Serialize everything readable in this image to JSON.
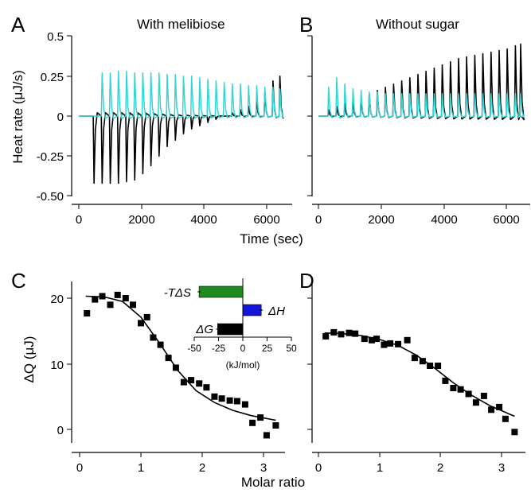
{
  "panels": {
    "A": {
      "letter": "A",
      "title": "With melibiose"
    },
    "B": {
      "letter": "B",
      "title": "Without sugar"
    },
    "C": {
      "letter": "C"
    },
    "D": {
      "letter": "D"
    }
  },
  "axes": {
    "top_ylabel": "Heat rate (μJ/s)",
    "top_xlabel": "Time (sec)",
    "bottom_ylabel": "ΔQ (μJ)",
    "bottom_xlabel": "Molar ratio",
    "top_yticks": [
      "0.5",
      "0.25",
      "0",
      "-0.25",
      "-0.50"
    ],
    "top_xticks": [
      "0",
      "2000",
      "4000",
      "6000"
    ],
    "bottom_yticks": [
      "20",
      "10",
      "0"
    ],
    "bottom_xticks": [
      "0",
      "1",
      "2",
      "3"
    ]
  },
  "inset": {
    "xlabel": "(kJ/mol)",
    "xticks": [
      "-50",
      "-25",
      "0",
      "25",
      "50"
    ],
    "labels": [
      "-TΔS",
      "ΔH",
      "ΔG"
    ]
  },
  "colors": {
    "black": "#000000",
    "cyan": "#33d6d6",
    "green": "#1f8a1f",
    "blue": "#1515d8"
  },
  "chart_data": [
    {
      "panel": "A",
      "type": "line",
      "xlim": [
        0,
        6500
      ],
      "ylim": [
        -0.5,
        0.5
      ],
      "injection_times": [
        460,
        720,
        980,
        1240,
        1500,
        1760,
        2020,
        2280,
        2540,
        2800,
        3060,
        3320,
        3580,
        3840,
        4100,
        4360,
        4620,
        4880,
        5140,
        5400,
        5660,
        5920,
        6180,
        6400
      ],
      "series": [
        {
          "color": "#000000",
          "peak_values": [
            -0.42,
            -0.42,
            -0.42,
            -0.42,
            -0.41,
            -0.4,
            -0.36,
            -0.31,
            -0.25,
            -0.19,
            -0.15,
            -0.11,
            -0.08,
            -0.06,
            -0.04,
            -0.02,
            0.0,
            0.02,
            0.04,
            0.06,
            0.1,
            0.15,
            0.22,
            0.25
          ]
        },
        {
          "color": "#33d6d6",
          "peak_values": [
            0.0,
            0.27,
            0.27,
            0.28,
            0.28,
            0.27,
            0.27,
            0.27,
            0.27,
            0.26,
            0.26,
            0.25,
            0.25,
            0.24,
            0.23,
            0.22,
            0.21,
            0.2,
            0.2,
            0.19,
            0.19,
            0.18,
            0.18,
            0.17
          ]
        }
      ]
    },
    {
      "panel": "B",
      "type": "line",
      "xlim": [
        0,
        6500
      ],
      "ylim": [
        -0.5,
        0.5
      ],
      "injection_times": [
        300,
        560,
        820,
        1080,
        1340,
        1600,
        1860,
        2120,
        2380,
        2640,
        2900,
        3160,
        3420,
        3680,
        3940,
        4200,
        4460,
        4720,
        4980,
        5240,
        5500,
        5760,
        6020,
        6280,
        6450
      ],
      "series": [
        {
          "color": "#000000",
          "peak_values": [
            0.04,
            0.06,
            0.08,
            0.1,
            0.12,
            0.14,
            0.16,
            0.18,
            0.2,
            0.22,
            0.24,
            0.26,
            0.28,
            0.3,
            0.32,
            0.34,
            0.36,
            0.37,
            0.38,
            0.39,
            0.4,
            0.41,
            0.42,
            0.44,
            0.45
          ]
        },
        {
          "color": "#33d6d6",
          "peak_values": [
            0.18,
            0.24,
            0.2,
            0.17,
            0.16,
            0.15,
            0.15,
            0.14,
            0.14,
            0.14,
            0.14,
            0.14,
            0.14,
            0.14,
            0.14,
            0.14,
            0.14,
            0.14,
            0.14,
            0.14,
            0.14,
            0.14,
            0.14,
            0.14,
            0.14
          ]
        }
      ]
    },
    {
      "panel": "C",
      "type": "scatter",
      "xlim": [
        0,
        3.3
      ],
      "ylim": [
        -2,
        22
      ],
      "points": [
        [
          0.12,
          17.7
        ],
        [
          0.25,
          19.8
        ],
        [
          0.37,
          20.3
        ],
        [
          0.5,
          19.0
        ],
        [
          0.62,
          20.5
        ],
        [
          0.75,
          20.0
        ],
        [
          0.87,
          19.0
        ],
        [
          1.0,
          16.2
        ],
        [
          1.1,
          17.1
        ],
        [
          1.2,
          14.0
        ],
        [
          1.32,
          12.9
        ],
        [
          1.45,
          10.9
        ],
        [
          1.57,
          9.4
        ],
        [
          1.7,
          7.2
        ],
        [
          1.82,
          7.5
        ],
        [
          1.95,
          7.0
        ],
        [
          2.07,
          6.4
        ],
        [
          2.2,
          5.0
        ],
        [
          2.32,
          4.7
        ],
        [
          2.45,
          4.4
        ],
        [
          2.57,
          4.3
        ],
        [
          2.7,
          3.8
        ],
        [
          2.82,
          1.0
        ],
        [
          2.95,
          1.8
        ],
        [
          3.05,
          -0.9
        ],
        [
          3.2,
          0.6
        ]
      ],
      "fit": {
        "x": [
          0.1,
          0.4,
          0.7,
          1.0,
          1.3,
          1.6,
          1.9,
          2.2,
          2.5,
          2.8,
          3.2
        ],
        "y": [
          20.3,
          20.2,
          19.5,
          17.1,
          13.2,
          9.0,
          5.9,
          4.1,
          2.9,
          2.1,
          1.4
        ]
      }
    },
    {
      "panel": "C-inset",
      "type": "bar",
      "orientation": "horizontal",
      "xlim": [
        -50,
        50
      ],
      "categories": [
        "-TΔS",
        "ΔH",
        "ΔG"
      ],
      "values": [
        -45,
        19,
        -26
      ],
      "colors": [
        "#1f8a1f",
        "#1515d8",
        "#000000"
      ]
    },
    {
      "panel": "D",
      "type": "scatter",
      "xlim": [
        0,
        3.3
      ],
      "ylim": [
        -2,
        22
      ],
      "points": [
        [
          0.12,
          14.2
        ],
        [
          0.25,
          14.8
        ],
        [
          0.37,
          14.5
        ],
        [
          0.5,
          14.7
        ],
        [
          0.6,
          14.6
        ],
        [
          0.75,
          13.8
        ],
        [
          0.87,
          13.6
        ],
        [
          0.95,
          13.8
        ],
        [
          1.07,
          12.9
        ],
        [
          1.17,
          13.1
        ],
        [
          1.3,
          13.0
        ],
        [
          1.45,
          13.6
        ],
        [
          1.57,
          10.9
        ],
        [
          1.7,
          10.4
        ],
        [
          1.82,
          9.7
        ],
        [
          1.95,
          9.7
        ],
        [
          2.07,
          7.4
        ],
        [
          2.2,
          6.3
        ],
        [
          2.32,
          6.1
        ],
        [
          2.45,
          5.4
        ],
        [
          2.57,
          4.1
        ],
        [
          2.7,
          5.1
        ],
        [
          2.82,
          3.0
        ],
        [
          2.95,
          3.4
        ],
        [
          3.05,
          1.6
        ],
        [
          3.2,
          -0.4
        ]
      ],
      "fit": {
        "x": [
          0.1,
          0.4,
          0.7,
          1.0,
          1.3,
          1.6,
          1.9,
          2.2,
          2.5,
          2.8,
          3.2
        ],
        "y": [
          14.7,
          14.6,
          14.3,
          13.7,
          12.8,
          11.3,
          9.3,
          7.1,
          5.2,
          3.6,
          2.0
        ]
      }
    }
  ]
}
